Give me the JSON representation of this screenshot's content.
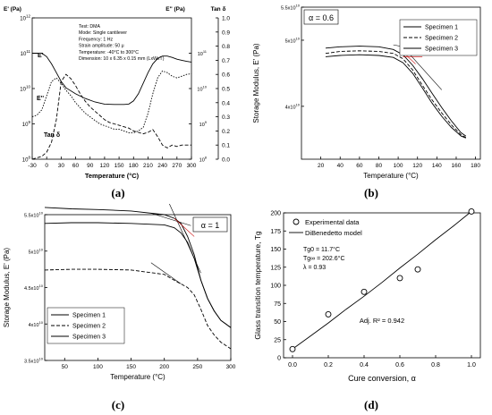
{
  "panels": [
    {
      "label": "(a)"
    },
    {
      "label": "(b)"
    },
    {
      "label": "(c)"
    },
    {
      "label": "(d)"
    }
  ],
  "chart_data": [
    {
      "id": "a",
      "type": "line",
      "xlabel": "Temperature (°C)",
      "ylabel_left": "E' (Pa)",
      "ylabel_mid": "E'' (Pa)",
      "ylabel_right": "Tan δ",
      "xlim": [
        -30,
        300
      ],
      "xticks": [
        "-30",
        "0",
        "30",
        "60",
        "90",
        "120",
        "150",
        "180",
        "210",
        "240",
        "270",
        "300"
      ],
      "yleft_ticks": [
        "10^8",
        "10^9",
        "10^10",
        "10^11",
        "10^12"
      ],
      "ymid_ticks": [
        "10^8",
        "10^9",
        "10^10",
        "10^11"
      ],
      "yright_ticks": [
        "0.0",
        "0.1",
        "0.2",
        "0.3",
        "0.4",
        "0.5",
        "0.6",
        "0.7",
        "0.8",
        "0.9",
        "1.0"
      ],
      "info_lines": [
        "Test: DMA",
        "Mode: Single cantilever",
        "Frequency: 1 Hz",
        "Strain amplitude: 50 μ",
        "Temperature: -40°C to 300°C",
        "Dimension: 10 x 6.35 x 0.15 mm (LxWxT)"
      ],
      "annotations": [
        "E'",
        "E''",
        "Tan δ"
      ],
      "series": [
        {
          "name": "E'",
          "style": "solid",
          "x": [
            -30,
            -10,
            0,
            10,
            20,
            30,
            40,
            60,
            80,
            100,
            120,
            140,
            160,
            170,
            180,
            190,
            200,
            210,
            220,
            230,
            240,
            250,
            260,
            270,
            280,
            290,
            300
          ],
          "y": [
            11.0,
            11.0,
            10.9,
            10.7,
            10.45,
            10.2,
            10.02,
            9.85,
            9.72,
            9.62,
            9.56,
            9.55,
            9.55,
            9.56,
            9.65,
            9.85,
            10.15,
            10.45,
            10.7,
            10.85,
            10.92,
            10.92,
            10.88,
            10.83,
            10.8,
            10.77,
            10.75
          ]
        },
        {
          "name": "E''",
          "style": "dotted",
          "x": [
            -30,
            -20,
            -10,
            0,
            10,
            20,
            30,
            40,
            50,
            60,
            70,
            80,
            90,
            100,
            110,
            120,
            130,
            140,
            150,
            160,
            170,
            180,
            190,
            200,
            210,
            220,
            230,
            240,
            250,
            260,
            270,
            280,
            290,
            300
          ],
          "y": [
            9.2,
            9.25,
            9.4,
            9.8,
            10.2,
            10.3,
            10.15,
            9.95,
            9.8,
            9.6,
            9.45,
            9.3,
            9.2,
            9.1,
            9.0,
            8.95,
            8.9,
            8.85,
            8.85,
            8.8,
            8.75,
            8.75,
            8.8,
            8.9,
            9.3,
            9.85,
            10.3,
            10.5,
            10.45,
            10.35,
            10.3,
            10.35,
            10.4,
            10.42
          ]
        },
        {
          "name": "Tan δ",
          "style": "dashed",
          "x": [
            -30,
            -20,
            -10,
            0,
            10,
            20,
            30,
            40,
            50,
            60,
            70,
            80,
            90,
            100,
            110,
            120,
            130,
            140,
            150,
            160,
            170,
            180,
            190,
            200,
            210,
            220,
            230,
            240,
            250,
            260,
            270,
            280,
            290,
            300
          ],
          "y": [
            0.0,
            0.01,
            0.02,
            0.05,
            0.12,
            0.28,
            0.55,
            0.6,
            0.57,
            0.52,
            0.46,
            0.41,
            0.37,
            0.34,
            0.31,
            0.28,
            0.26,
            0.25,
            0.24,
            0.23,
            0.22,
            0.2,
            0.19,
            0.18,
            0.19,
            0.21,
            0.16,
            0.1,
            0.08,
            0.1,
            0.09,
            0.1,
            0.1,
            0.1
          ]
        }
      ]
    },
    {
      "id": "b",
      "type": "line",
      "title": "α = 0.6",
      "xlabel": "Temperature (°C)",
      "ylabel": "Storage Modulus, E' (Pa)",
      "xlim": [
        0,
        185
      ],
      "ylim": [
        3.2,
        5.5
      ],
      "xticks": [
        20,
        40,
        60,
        80,
        100,
        120,
        140,
        160,
        180
      ],
      "yticks": [
        {
          "v": 4.0,
          "label": "4x10^10"
        },
        {
          "v": 5.0,
          "label": "5x10^10"
        },
        {
          "v": 5.5,
          "label": "5.5x10^10"
        }
      ],
      "series": [
        {
          "name": "Specimen 1",
          "style": "solid",
          "x": [
            25,
            40,
            60,
            80,
            95,
            105,
            115,
            125,
            135,
            145,
            155,
            165,
            170
          ],
          "y": [
            4.88,
            4.9,
            4.91,
            4.9,
            4.86,
            4.78,
            4.62,
            4.42,
            4.2,
            3.98,
            3.78,
            3.6,
            3.55
          ]
        },
        {
          "name": "Specimen 2",
          "style": "dashed",
          "x": [
            25,
            40,
            60,
            80,
            95,
            105,
            115,
            125,
            135,
            145,
            155,
            165,
            170
          ],
          "y": [
            4.8,
            4.83,
            4.84,
            4.83,
            4.8,
            4.72,
            4.55,
            4.32,
            4.1,
            3.9,
            3.72,
            3.57,
            3.53
          ]
        },
        {
          "name": "Specimen 3",
          "style": "solid",
          "x": [
            25,
            40,
            60,
            80,
            95,
            105,
            115,
            125,
            135,
            145,
            155,
            165,
            170
          ],
          "y": [
            4.75,
            4.77,
            4.78,
            4.77,
            4.74,
            4.66,
            4.5,
            4.28,
            4.05,
            3.85,
            3.68,
            3.55,
            3.52
          ]
        }
      ]
    },
    {
      "id": "c",
      "type": "line",
      "title": "α = 1",
      "xlabel": "Temperature (°C)",
      "ylabel": "Storage Modulus, E' (Pa)",
      "xlim": [
        20,
        300
      ],
      "ylim": [
        3.5,
        5.5
      ],
      "xticks": [
        50,
        100,
        150,
        200,
        250,
        300
      ],
      "yticks": [
        {
          "v": 3.5,
          "label": "3.5x10^10"
        },
        {
          "v": 4.0,
          "label": "4x10^10"
        },
        {
          "v": 4.5,
          "label": "4.5x10^10"
        },
        {
          "v": 5.0,
          "label": "5x10^10"
        },
        {
          "v": 5.5,
          "label": "5.5x10^10"
        }
      ],
      "series": [
        {
          "name": "Specimen 1",
          "style": "solid",
          "x": [
            20,
            60,
            100,
            150,
            200,
            215,
            225,
            235,
            245,
            255,
            265,
            275,
            285,
            300
          ],
          "y": [
            5.38,
            5.39,
            5.39,
            5.38,
            5.36,
            5.32,
            5.25,
            5.12,
            4.9,
            4.6,
            4.35,
            4.18,
            4.05,
            3.95
          ]
        },
        {
          "name": "Specimen 2",
          "style": "dashed",
          "x": [
            20,
            60,
            100,
            150,
            200,
            215,
            225,
            235,
            245,
            255,
            265,
            275,
            285,
            300
          ],
          "y": [
            4.74,
            4.75,
            4.75,
            4.74,
            4.68,
            4.6,
            4.55,
            4.5,
            4.4,
            4.2,
            3.98,
            3.85,
            3.75,
            3.66
          ]
        },
        {
          "name": "Specimen 3",
          "style": "solid",
          "x": [
            20,
            60,
            100,
            150,
            200,
            215,
            225,
            235,
            245,
            255,
            265,
            275,
            285,
            300
          ],
          "y": [
            5.6,
            5.58,
            5.57,
            5.55,
            5.5,
            5.45,
            5.38,
            5.2,
            4.95,
            4.6,
            4.35,
            4.18,
            4.05,
            3.95
          ]
        }
      ]
    },
    {
      "id": "d",
      "type": "scatter",
      "xlabel": "Cure conversion, α",
      "ylabel": "Glass transition temperature, Tg",
      "xlim": [
        -0.05,
        1.05
      ],
      "ylim": [
        0,
        200
      ],
      "xticks": [
        "0.0",
        "0.2",
        "0.4",
        "0.6",
        "0.8",
        "1.0"
      ],
      "yticks": [
        "0",
        "25",
        "50",
        "75",
        "100",
        "125",
        "150",
        "175",
        "200"
      ],
      "legend": [
        "Experimental data",
        "DiBenedetto model"
      ],
      "params": [
        "Tg0 = 11.7°C",
        "Tg∞ = 202.6°C",
        "λ = 0.93"
      ],
      "r2": "Adj. R² = 0.942",
      "points": {
        "x": [
          0.0,
          0.2,
          0.4,
          0.6,
          0.7,
          1.0
        ],
        "y": [
          12,
          60,
          91,
          110,
          122,
          202
        ]
      },
      "model": {
        "x": [
          0.0,
          0.1,
          0.2,
          0.3,
          0.4,
          0.5,
          0.6,
          0.7,
          0.8,
          0.9,
          1.0
        ],
        "y": [
          12,
          30,
          48,
          67,
          85,
          104,
          124,
          143,
          163,
          182,
          202
        ]
      }
    }
  ]
}
